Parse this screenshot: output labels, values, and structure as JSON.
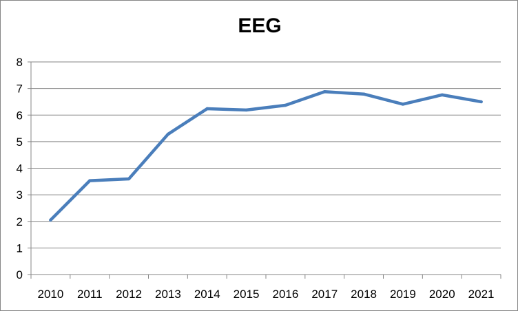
{
  "chart_data": {
    "type": "line",
    "title": "EEG",
    "xlabel": "",
    "ylabel": "",
    "categories": [
      "2010",
      "2011",
      "2012",
      "2013",
      "2014",
      "2015",
      "2016",
      "2017",
      "2018",
      "2019",
      "2020",
      "2021"
    ],
    "series": [
      {
        "values": [
          2.05,
          3.53,
          3.6,
          5.28,
          6.24,
          6.19,
          6.37,
          6.88,
          6.79,
          6.41,
          6.76,
          6.5
        ],
        "color": "#4a7ebb"
      }
    ],
    "ylim": [
      0,
      8
    ],
    "yticks": [
      "0",
      "1",
      "2",
      "3",
      "4",
      "5",
      "6",
      "7",
      "8"
    ],
    "grid": true,
    "legend": "none"
  }
}
